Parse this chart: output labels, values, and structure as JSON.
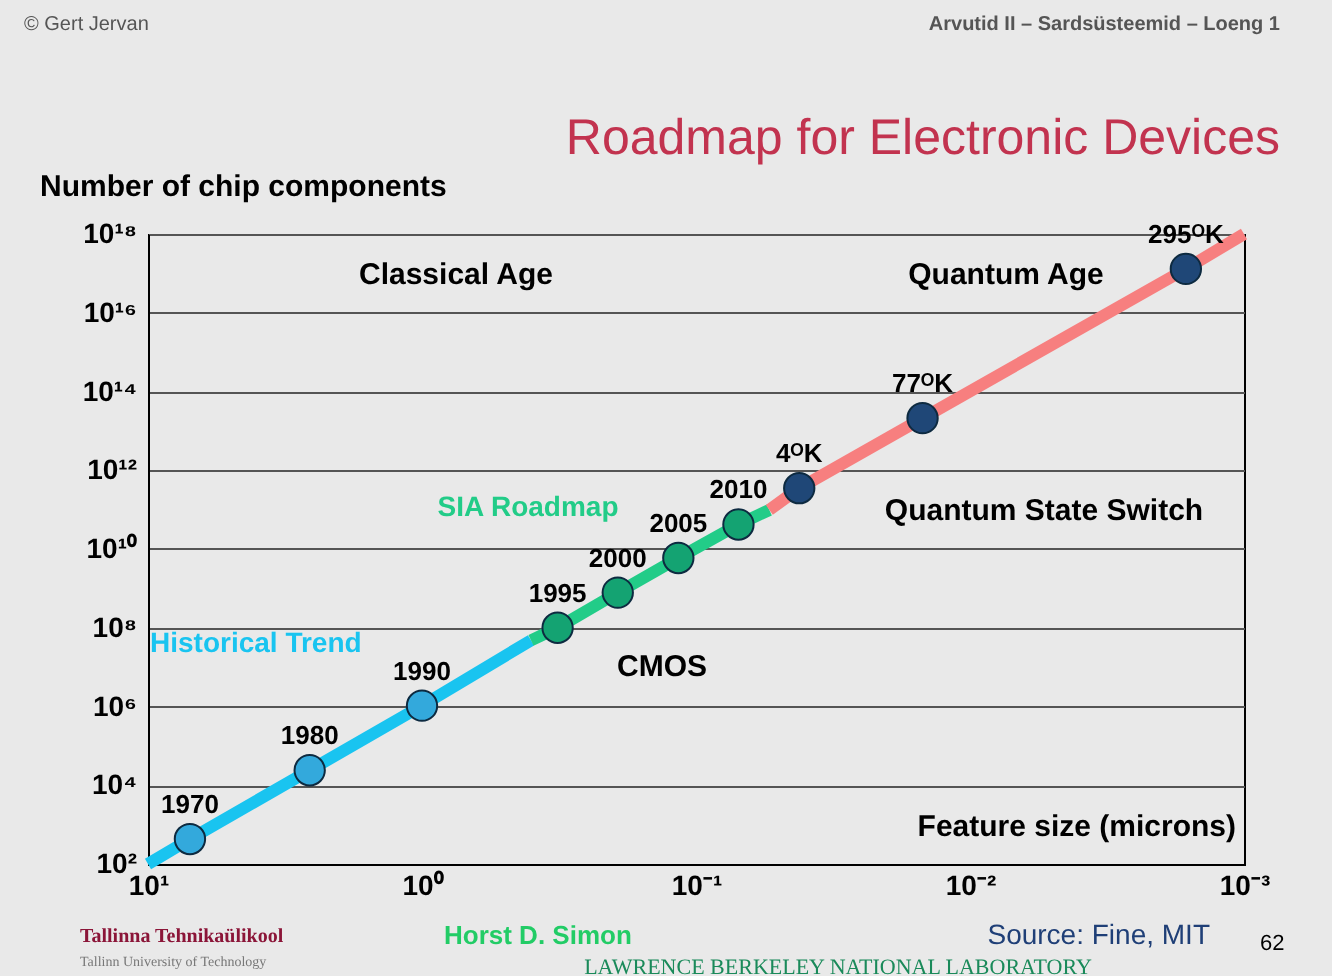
{
  "chart_data": {
    "type": "line",
    "title": "Roadmap for Electronic Devices",
    "xlabel": "Feature size (microns)",
    "ylabel": "Number of chip components",
    "log": "xy",
    "xlim": [
      10,
      0.001
    ],
    "ylim": [
      100,
      1e+18
    ],
    "xticks": [
      {
        "value": 10,
        "label": "10¹"
      },
      {
        "value": 1,
        "label": "10⁰"
      },
      {
        "value": 0.1,
        "label": "10⁻¹"
      },
      {
        "value": 0.01,
        "label": "10⁻²"
      },
      {
        "value": 0.001,
        "label": "10⁻³"
      }
    ],
    "yticks": [
      {
        "value": 100,
        "label": "10²"
      },
      {
        "value": 10000,
        "label": "10⁴"
      },
      {
        "value": 1000000,
        "label": "10⁶"
      },
      {
        "value": 100000000,
        "label": "10⁸"
      },
      {
        "value": 10000000000,
        "label": "10¹⁰"
      },
      {
        "value": 1000000000000,
        "label": "10¹²"
      },
      {
        "value": 100000000000000,
        "label": "10¹⁴"
      },
      {
        "value": 10000000000000000,
        "label": "10¹⁶"
      },
      {
        "value": 1000000000000000000,
        "label": "10¹⁸"
      }
    ],
    "grid": "y",
    "series": [
      {
        "name": "Historical Trend",
        "color": "#19c4f0",
        "x": [
          10,
          7.03,
          2.57,
          1,
          0.4
        ],
        "values": [
          100,
          430,
          24000,
          1050000,
          48000000
        ]
      },
      {
        "name": "SIA Roadmap",
        "color": "#22cc88",
        "x": [
          0.4,
          0.32,
          0.193,
          0.116,
          0.07,
          0.054
        ],
        "values": [
          48000000,
          100000000,
          780000000,
          5900000000,
          42000000000,
          98000000000
        ]
      },
      {
        "color": "#f77f7f",
        "x": [
          0.054,
          0.042,
          0.0149,
          0.00163,
          0.001
        ],
        "values": [
          98000000000,
          350000000000,
          21000000000000,
          130000000000000000,
          1000000000000000000
        ]
      },
      {
        "type": "scatter",
        "marker": "circle",
        "color": "#33a9dc",
        "x": [
          7.03,
          2.57,
          1
        ],
        "values": [
          430,
          24000,
          1050000
        ]
      },
      {
        "type": "scatter",
        "marker": "circle",
        "color": "#14a372",
        "x": [
          0.32,
          0.193,
          0.116,
          0.07
        ],
        "values": [
          100000000,
          780000000,
          5900000000,
          42000000000
        ]
      },
      {
        "type": "scatter",
        "marker": "circle",
        "color": "#1f4777",
        "x": [
          0.042,
          0.0149,
          0.00163
        ],
        "values": [
          350000000000,
          21000000000000,
          130000000000000000
        ]
      }
    ],
    "annotations": [
      "© Gert Jervan",
      "Arvutid II – Sardsüsteemid – Loeng 1",
      "Classical Age",
      "Quantum Age",
      "Quantum State Switch",
      "CMOS",
      "Tallinna Tehnikaülikool",
      "Tallinn University of Technology",
      "Horst D. Simon",
      "Source: Fine, MIT",
      "62",
      "LAWRENCE BERKELEY NATIONAL LABORATORY",
      {
        "text": "1970",
        "x": 7.03,
        "y": 430
      },
      {
        "text": "1980",
        "x": 2.57,
        "y": 24000
      },
      {
        "text": "1990",
        "x": 1,
        "y": 1050000
      },
      {
        "text": "1995",
        "x": 0.32,
        "y": 100000000
      },
      {
        "text": "2000",
        "x": 0.193,
        "y": 780000000
      },
      {
        "text": "2005",
        "x": 0.116,
        "y": 5900000000
      },
      {
        "text": "2010",
        "x": 0.07,
        "y": 42000000000
      },
      {
        "text": "4ᴼK",
        "x": 0.042,
        "y": 350000000000
      },
      {
        "text": "77ᴼK",
        "x": 0.0149,
        "y": 21000000000000
      },
      {
        "text": "295ᴼK",
        "x": 0.00163,
        "y": 130000000000000000
      }
    ]
  }
}
